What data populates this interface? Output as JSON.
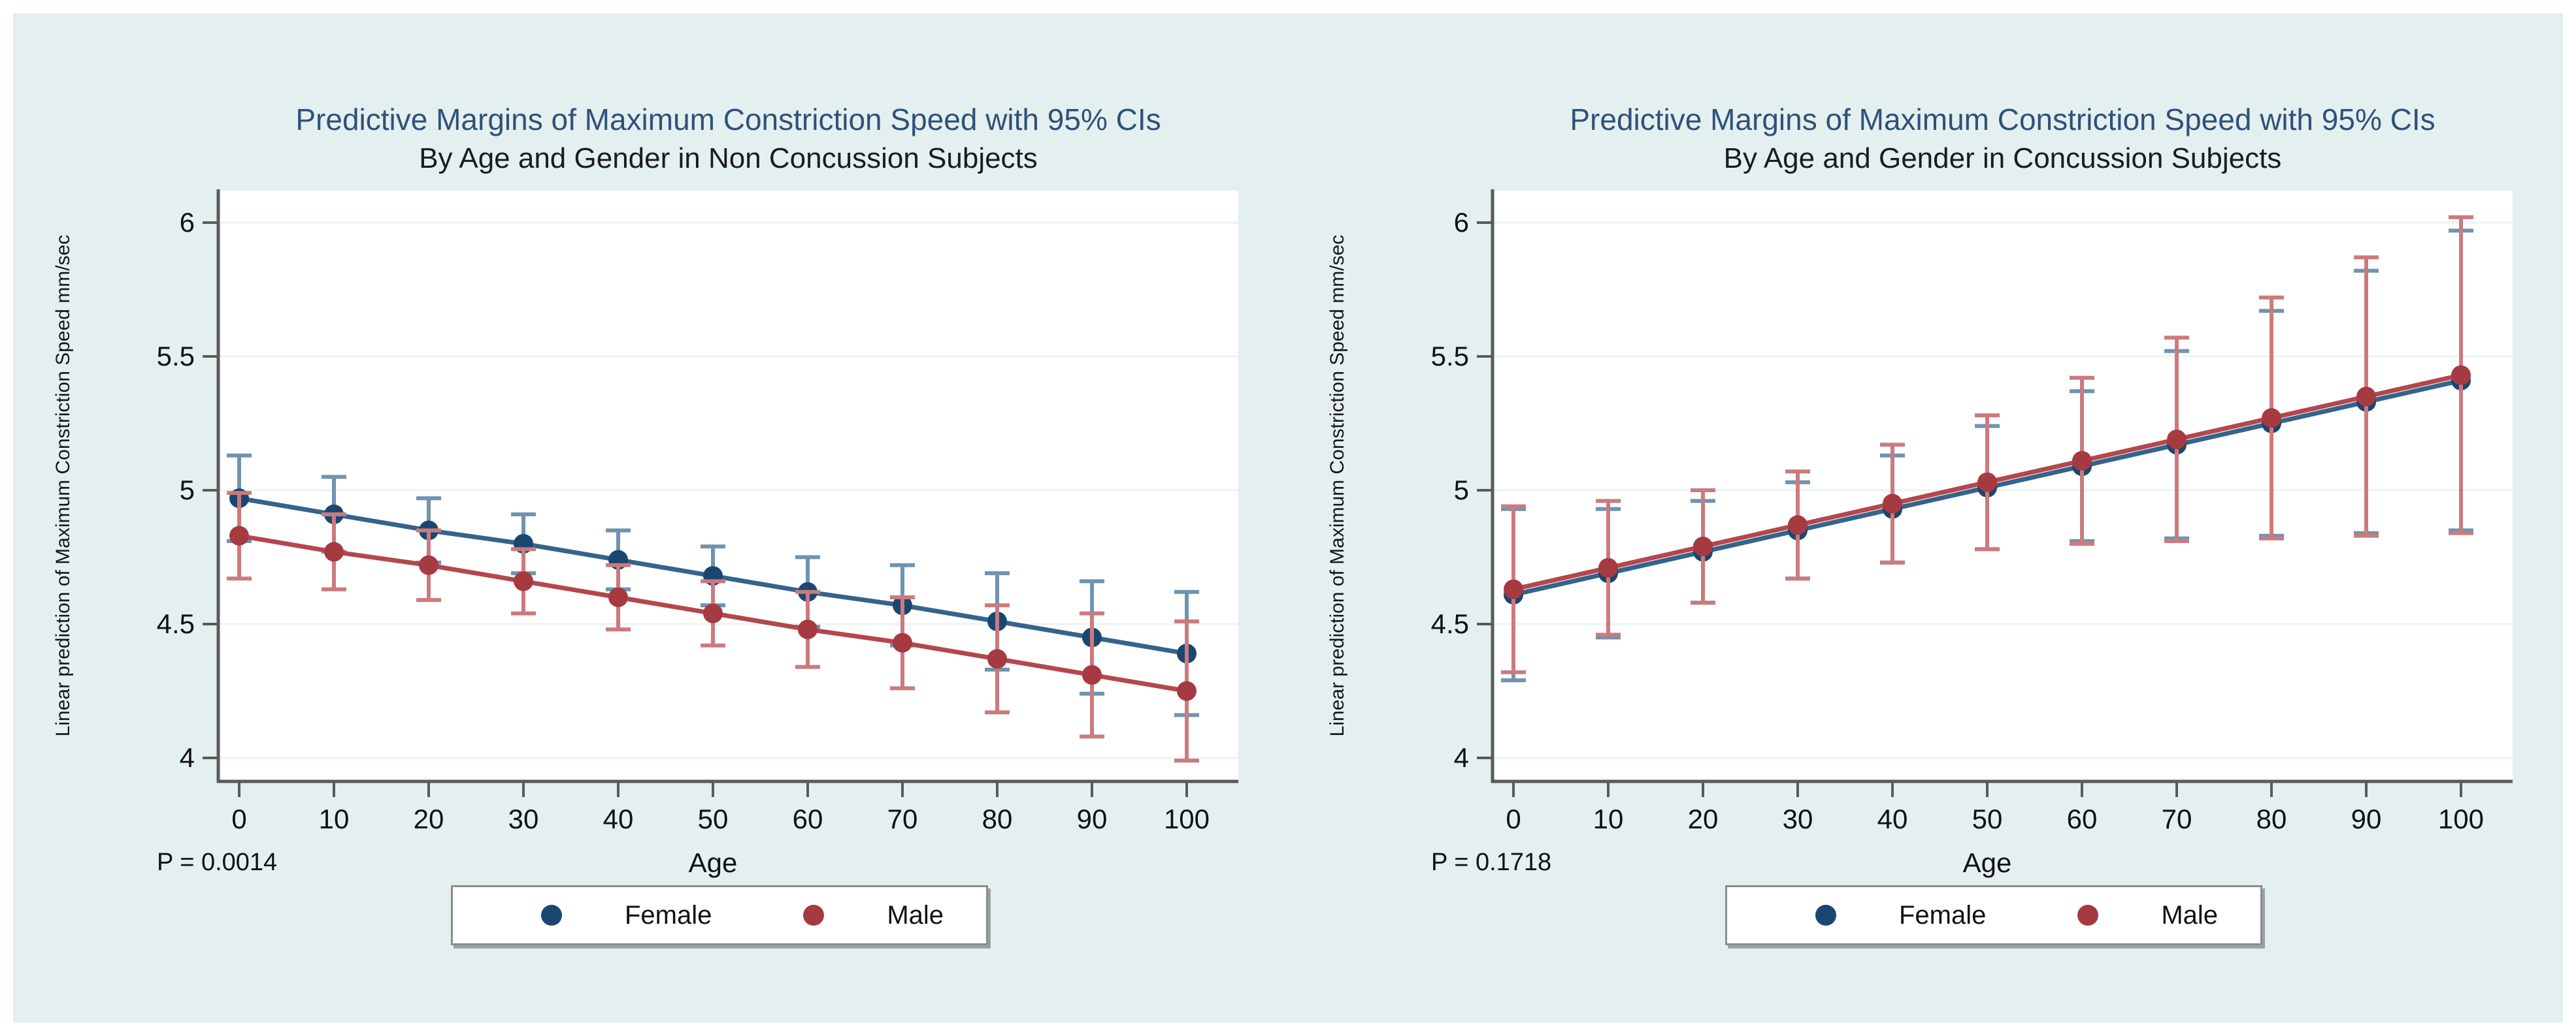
{
  "window": {
    "background": "#ffffff",
    "panel_background": "#e4f0ef"
  },
  "colors": {
    "title_blue": "#2f517a",
    "female_point": "#1a476f",
    "female_line": "#34648c",
    "female_whisker": "#6f94b0",
    "male_point": "#a63a41",
    "male_line": "#b4474e",
    "male_whisker": "#cb7a7e",
    "axis": "#5a5a5a",
    "gridline": "#e9f4f3",
    "text": "#1a1a1a"
  },
  "chart_data": [
    {
      "type": "line",
      "title": "Predictive Margins of Maximum Constriction Speed with 95% CIs",
      "subtitle": "By Age and Gender in Non Concussion Subjects",
      "p_label": "P = 0.0014",
      "xlabel": "Age",
      "ylabel": "Linear prediction of Maximum Constriction Speed mm/sec",
      "x": [
        0,
        10,
        20,
        30,
        40,
        50,
        60,
        70,
        80,
        90,
        100
      ],
      "y_ticks": [
        4,
        4.5,
        5,
        5.5,
        6
      ],
      "ylim": [
        3.92,
        6.12
      ],
      "grid": true,
      "error_bars": "95% CI",
      "legend_position": "bottom-center",
      "series": [
        {
          "name": "Female",
          "color": "#1a476f",
          "values": [
            4.97,
            4.91,
            4.85,
            4.8,
            4.74,
            4.68,
            4.62,
            4.57,
            4.51,
            4.45,
            4.39
          ],
          "ci_low": [
            4.81,
            4.77,
            4.73,
            4.69,
            4.63,
            4.57,
            4.49,
            4.42,
            4.33,
            4.24,
            4.16
          ],
          "ci_high": [
            5.13,
            5.05,
            4.97,
            4.91,
            4.85,
            4.79,
            4.75,
            4.72,
            4.69,
            4.66,
            4.62
          ]
        },
        {
          "name": "Male",
          "color": "#a63a41",
          "values": [
            4.83,
            4.77,
            4.72,
            4.66,
            4.6,
            4.54,
            4.48,
            4.43,
            4.37,
            4.31,
            4.25
          ],
          "ci_low": [
            4.67,
            4.63,
            4.59,
            4.54,
            4.48,
            4.42,
            4.34,
            4.26,
            4.17,
            4.08,
            3.99
          ],
          "ci_high": [
            4.99,
            4.91,
            4.85,
            4.78,
            4.72,
            4.66,
            4.62,
            4.6,
            4.57,
            4.54,
            4.51
          ]
        }
      ]
    },
    {
      "type": "line",
      "title": "Predictive Margins of Maximum Constriction Speed with 95% CIs",
      "subtitle": "By Age and Gender in Concussion Subjects",
      "p_label": "P = 0.1718",
      "xlabel": "Age",
      "ylabel": "Linear prediction of Maximum Constriction Speed mm/sec",
      "x": [
        0,
        10,
        20,
        30,
        40,
        50,
        60,
        70,
        80,
        90,
        100
      ],
      "y_ticks": [
        4,
        4.5,
        5,
        5.5,
        6
      ],
      "ylim": [
        3.92,
        6.12
      ],
      "grid": true,
      "error_bars": "95% CI",
      "legend_position": "bottom-center",
      "series": [
        {
          "name": "Female",
          "color": "#1a476f",
          "values": [
            4.61,
            4.69,
            4.77,
            4.85,
            4.93,
            5.01,
            5.09,
            5.17,
            5.25,
            5.33,
            5.41
          ],
          "ci_low": [
            4.29,
            4.45,
            4.58,
            4.67,
            4.73,
            4.78,
            4.81,
            4.82,
            4.83,
            4.84,
            4.85
          ],
          "ci_high": [
            4.93,
            4.93,
            4.96,
            5.03,
            5.13,
            5.24,
            5.37,
            5.52,
            5.67,
            5.82,
            5.97
          ]
        },
        {
          "name": "Male",
          "color": "#a63a41",
          "values": [
            4.63,
            4.71,
            4.79,
            4.87,
            4.95,
            5.03,
            5.11,
            5.19,
            5.27,
            5.35,
            5.43
          ],
          "ci_low": [
            4.32,
            4.46,
            4.58,
            4.67,
            4.73,
            4.78,
            4.8,
            4.81,
            4.82,
            4.83,
            4.84
          ],
          "ci_high": [
            4.94,
            4.96,
            5.0,
            5.07,
            5.17,
            5.28,
            5.42,
            5.57,
            5.72,
            5.87,
            6.02
          ]
        }
      ]
    }
  ]
}
